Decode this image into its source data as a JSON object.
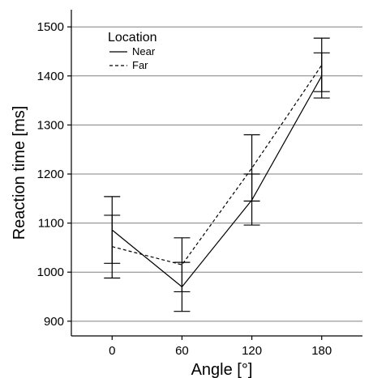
{
  "chart_data": {
    "type": "line",
    "x": [
      0,
      60,
      120,
      180
    ],
    "xlabel": "Angle [°]",
    "ylabel": "Reaction time [ms]",
    "x_ticks": [
      "0",
      "60",
      "120",
      "180"
    ],
    "y_ticks": [
      900,
      1000,
      1100,
      1200,
      1300,
      1400,
      1500
    ],
    "ylim": [
      870,
      1535
    ],
    "xlim": [
      -35,
      215
    ],
    "grid": "horizontal",
    "legend": {
      "title": "Location",
      "placement": "top-left"
    },
    "series": [
      {
        "name": "Near",
        "line_style": "solid",
        "values": [
          1086,
          970,
          1147,
          1400
        ],
        "error_low": [
          1018,
          920,
          1096,
          1355
        ],
        "error_high": [
          1154,
          1020,
          1200,
          1447
        ]
      },
      {
        "name": "Far",
        "line_style": "dashed",
        "values": [
          1052,
          1015,
          1212,
          1422
        ],
        "error_low": [
          988,
          960,
          1145,
          1368
        ],
        "error_high": [
          1116,
          1070,
          1280,
          1477
        ]
      }
    ],
    "colors": {
      "line": "#000000",
      "grid": "#808080",
      "background": "#ffffff"
    }
  }
}
